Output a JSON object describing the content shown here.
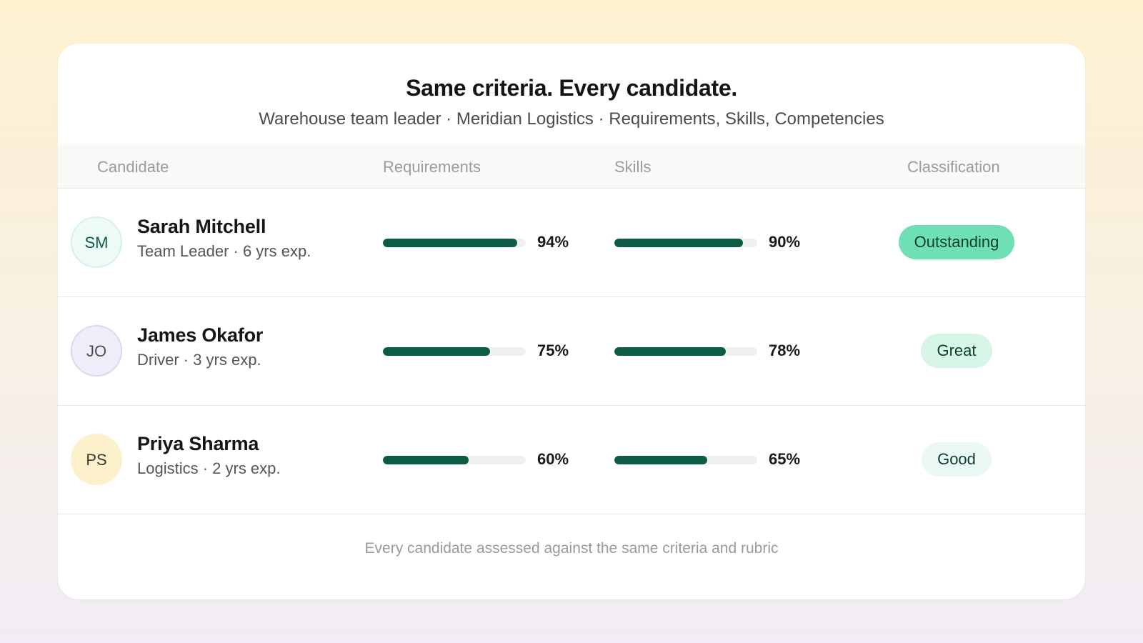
{
  "header": {
    "title": "Same criteria. Every candidate.",
    "subtitle": "Warehouse team leader · Meridian Logistics · Requirements, Skills, Competencies"
  },
  "table": {
    "columns": {
      "candidate": "Candidate",
      "requirements": "Requirements",
      "skills": "Skills",
      "classification": "Classification"
    },
    "rows": [
      {
        "initials": "SM",
        "name": "Sarah Mitchell",
        "meta": "Team Leader · 6 yrs exp.",
        "requirements": 94,
        "requirements_label": "94%",
        "skills": 90,
        "skills_label": "90%",
        "classification": "Outstanding",
        "avatar_bg": "#eefaf4",
        "avatar_border": "#d7f1e4",
        "avatar_color": "#0d5c45",
        "badge_bg": "#6fe0b3",
        "badge_color": "#0b3d2e"
      },
      {
        "initials": "JO",
        "name": "James Okafor",
        "meta": "Driver · 3 yrs exp.",
        "requirements": 75,
        "requirements_label": "75%",
        "skills": 78,
        "skills_label": "78%",
        "classification": "Great",
        "avatar_bg": "#f0edfb",
        "avatar_border": "#ddd6f5",
        "avatar_color": "#4b4b55",
        "badge_bg": "#d8f6e8",
        "badge_color": "#0b3d2e"
      },
      {
        "initials": "PS",
        "name": "Priya Sharma",
        "meta": "Logistics · 2 yrs exp.",
        "requirements": 60,
        "requirements_label": "60%",
        "skills": 65,
        "skills_label": "65%",
        "classification": "Good",
        "avatar_bg": "#fdf1cc",
        "avatar_border": "#fdf1cc",
        "avatar_color": "#3a3a2e",
        "badge_bg": "#ecf9f2",
        "badge_color": "#0b3d2e"
      }
    ]
  },
  "footer": {
    "text": "Every candidate assessed against the same criteria and rubric"
  },
  "colors": {
    "bar_fill": "#0d5c45",
    "bar_track": "#f0f0ee"
  }
}
